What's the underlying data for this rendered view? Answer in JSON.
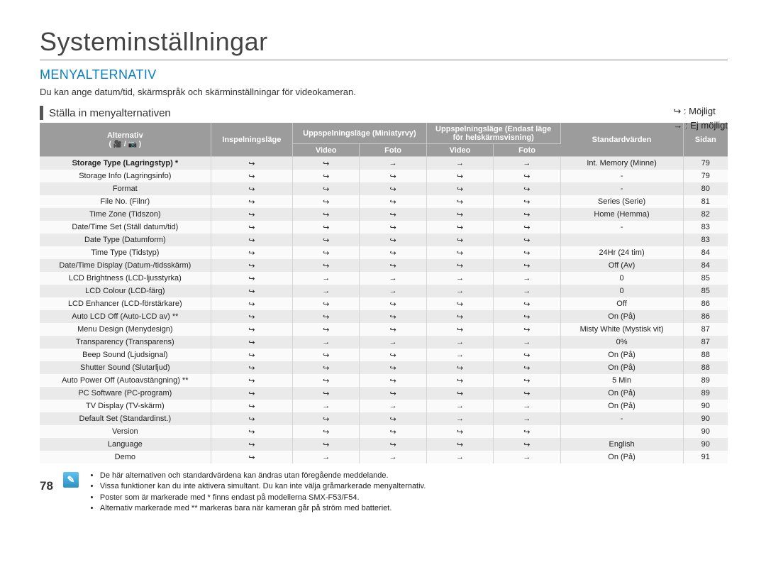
{
  "title": "Systeminställningar",
  "section": "MENYALTERNATIV",
  "intro": "Du kan ange datum/tid, skärmspråk och skärminställningar för videokameran.",
  "subhead": "Ställa in menyalternativen",
  "possible_label": "Möjligt",
  "notpossible_label": "Ej möjligt",
  "yes_glyph": "↪",
  "no_glyph": "→",
  "header": {
    "alt": "Alternativ",
    "mode_icons": "( 🎥 / 📷 )",
    "rec": "Inspelningsläge",
    "play_thumb": "Uppspelningsläge (Miniatyrvy)",
    "play_full": "Uppspelningsläge (Endast läge för helskärmsvisning)",
    "video": "Video",
    "foto": "Foto",
    "default": "Standardvärden",
    "page": "Sidan"
  },
  "rows": [
    {
      "alt": "Storage Type (Lagringstyp) *",
      "r": "Y",
      "pv": "Y",
      "pf": "N",
      "fv": "N",
      "ff": "N",
      "def": "Int. Memory (Minne)",
      "pg": "79"
    },
    {
      "alt": "Storage Info (Lagringsinfo)",
      "r": "Y",
      "pv": "Y",
      "pf": "Y",
      "fv": "Y",
      "ff": "Y",
      "def": "-",
      "pg": "79"
    },
    {
      "alt": "Format",
      "r": "Y",
      "pv": "Y",
      "pf": "Y",
      "fv": "Y",
      "ff": "Y",
      "def": "-",
      "pg": "80"
    },
    {
      "alt": "File No. (Filnr)",
      "r": "Y",
      "pv": "Y",
      "pf": "Y",
      "fv": "Y",
      "ff": "Y",
      "def": "Series (Serie)",
      "pg": "81"
    },
    {
      "alt": "Time Zone (Tidszon)",
      "r": "Y",
      "pv": "Y",
      "pf": "Y",
      "fv": "Y",
      "ff": "Y",
      "def": "Home (Hemma)",
      "pg": "82"
    },
    {
      "alt": "Date/Time Set (Ställ datum/tid)",
      "r": "Y",
      "pv": "Y",
      "pf": "Y",
      "fv": "Y",
      "ff": "Y",
      "def": "-",
      "pg": "83"
    },
    {
      "alt": "Date Type (Datumform)",
      "r": "Y",
      "pv": "Y",
      "pf": "Y",
      "fv": "Y",
      "ff": "Y",
      "def": "",
      "pg": "83"
    },
    {
      "alt": "Time Type (Tidstyp)",
      "r": "Y",
      "pv": "Y",
      "pf": "Y",
      "fv": "Y",
      "ff": "Y",
      "def": "24Hr (24 tim)",
      "pg": "84"
    },
    {
      "alt": "Date/Time Display (Datum-/tidsskärm)",
      "r": "Y",
      "pv": "Y",
      "pf": "Y",
      "fv": "Y",
      "ff": "Y",
      "def": "Off (Av)",
      "pg": "84"
    },
    {
      "alt": "LCD Brightness (LCD-ljusstyrka)",
      "r": "Y",
      "pv": "N",
      "pf": "N",
      "fv": "N",
      "ff": "N",
      "def": "0",
      "pg": "85"
    },
    {
      "alt": "LCD Colour (LCD-färg)",
      "r": "Y",
      "pv": "N",
      "pf": "N",
      "fv": "N",
      "ff": "N",
      "def": "0",
      "pg": "85"
    },
    {
      "alt": "LCD Enhancer (LCD-förstärkare)",
      "r": "Y",
      "pv": "Y",
      "pf": "Y",
      "fv": "Y",
      "ff": "Y",
      "def": "Off",
      "pg": "86"
    },
    {
      "alt": "Auto LCD Off (Auto-LCD av) **",
      "r": "Y",
      "pv": "Y",
      "pf": "Y",
      "fv": "Y",
      "ff": "Y",
      "def": "On (På)",
      "pg": "86"
    },
    {
      "alt": "Menu Design (Menydesign)",
      "r": "Y",
      "pv": "Y",
      "pf": "Y",
      "fv": "Y",
      "ff": "Y",
      "def": "Misty White (Mystisk vit)",
      "pg": "87"
    },
    {
      "alt": "Transparency (Transparens)",
      "r": "Y",
      "pv": "N",
      "pf": "N",
      "fv": "N",
      "ff": "N",
      "def": "0%",
      "pg": "87"
    },
    {
      "alt": "Beep Sound (Ljudsignal)",
      "r": "Y",
      "pv": "Y",
      "pf": "Y",
      "fv": "N",
      "ff": "Y",
      "def": "On (På)",
      "pg": "88"
    },
    {
      "alt": "Shutter Sound (Slutarljud)",
      "r": "Y",
      "pv": "Y",
      "pf": "Y",
      "fv": "Y",
      "ff": "Y",
      "def": "On (På)",
      "pg": "88"
    },
    {
      "alt": "Auto Power Off (Autoavstängning) **",
      "r": "Y",
      "pv": "Y",
      "pf": "Y",
      "fv": "Y",
      "ff": "Y",
      "def": "5 Min",
      "pg": "89"
    },
    {
      "alt": "PC Software (PC-program)",
      "r": "Y",
      "pv": "Y",
      "pf": "Y",
      "fv": "Y",
      "ff": "Y",
      "def": "On (På)",
      "pg": "89"
    },
    {
      "alt": "TV Display (TV-skärm)",
      "r": "Y",
      "pv": "N",
      "pf": "N",
      "fv": "N",
      "ff": "N",
      "def": "On (På)",
      "pg": "90"
    },
    {
      "alt": "Default Set (Standardinst.)",
      "r": "Y",
      "pv": "Y",
      "pf": "Y",
      "fv": "N",
      "ff": "N",
      "def": "-",
      "pg": "90"
    },
    {
      "alt": "Version",
      "r": "Y",
      "pv": "Y",
      "pf": "Y",
      "fv": "Y",
      "ff": "Y",
      "def": "",
      "pg": "90"
    },
    {
      "alt": "Language",
      "r": "Y",
      "pv": "Y",
      "pf": "Y",
      "fv": "Y",
      "ff": "Y",
      "def": "English",
      "pg": "90"
    },
    {
      "alt": "Demo",
      "r": "Y",
      "pv": "N",
      "pf": "N",
      "fv": "N",
      "ff": "N",
      "def": "On (På)",
      "pg": "91"
    }
  ],
  "footnotes": [
    "De här alternativen och standardvärdena kan ändras utan föregående meddelande.",
    "Vissa funktioner kan du inte aktivera simultant. Du kan inte välja gråmarkerade menyalternativ.",
    "Poster som är markerade med * finns endast på modellerna SMX-F53/F54.",
    "Alternativ markerade med ** markeras bara när kameran går på ström med batteriet."
  ],
  "pagenum": "78",
  "colors": {
    "header_bg": "#9c9c9c",
    "row_odd": "#eaeaea",
    "row_even": "#fafafa",
    "accent": "#0a7fbf"
  },
  "col_widths": {
    "alt": 230,
    "rec": 110,
    "pv": 90,
    "pf": 90,
    "fv": 90,
    "ff": 90,
    "def": 165,
    "pg": 60
  }
}
